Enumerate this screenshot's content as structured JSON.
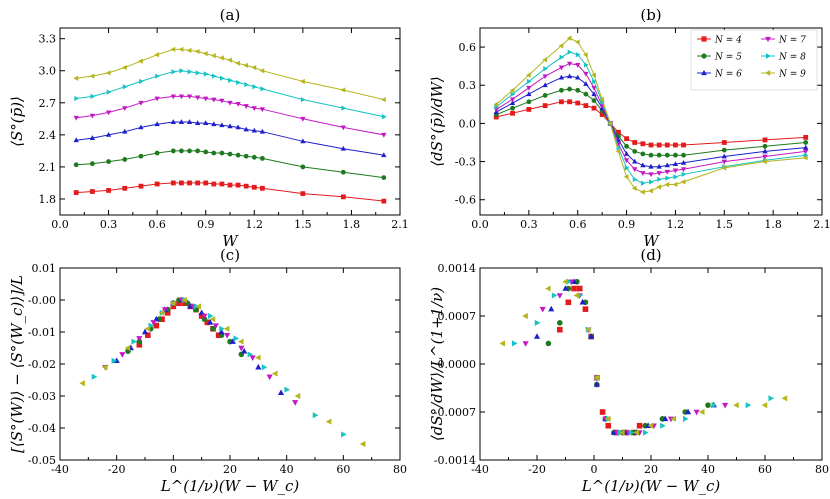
{
  "figure": {
    "description_panels": 4
  },
  "chart_data": [
    {
      "id": "a",
      "type": "line",
      "title": "(a)",
      "xlabel": "W",
      "ylabel": "⟨S°(p̄)⟩",
      "xlim": [
        0,
        2.1
      ],
      "ylim": [
        1.65,
        3.4
      ],
      "xticks": [
        "0.0",
        "0.3",
        "0.6",
        "0.9",
        "1.2",
        "1.5",
        "1.8",
        "2.1"
      ],
      "xtick_values": [
        0,
        0.3,
        0.6,
        0.9,
        1.2,
        1.5,
        1.8,
        2.1
      ],
      "yticks": [
        "1.8",
        "2.1",
        "2.4",
        "2.7",
        "3.0",
        "3.3"
      ],
      "ytick_values": [
        1.8,
        2.1,
        2.4,
        2.7,
        3.0,
        3.3
      ],
      "x": [
        0.1,
        0.2,
        0.3,
        0.4,
        0.5,
        0.6,
        0.7,
        0.75,
        0.8,
        0.85,
        0.9,
        0.95,
        1.0,
        1.05,
        1.1,
        1.15,
        1.2,
        1.25,
        1.5,
        1.75,
        2.0
      ],
      "series": [
        {
          "name": "N = 4",
          "color": "#e41a1c",
          "marker": "square",
          "values": [
            1.86,
            1.87,
            1.88,
            1.9,
            1.92,
            1.94,
            1.95,
            1.95,
            1.95,
            1.95,
            1.95,
            1.94,
            1.94,
            1.93,
            1.93,
            1.92,
            1.91,
            1.9,
            1.85,
            1.82,
            1.78
          ]
        },
        {
          "name": "N = 5",
          "color": "#1f7a1f",
          "marker": "circle",
          "values": [
            2.12,
            2.13,
            2.15,
            2.17,
            2.2,
            2.23,
            2.25,
            2.25,
            2.25,
            2.25,
            2.24,
            2.23,
            2.23,
            2.22,
            2.21,
            2.2,
            2.19,
            2.18,
            2.1,
            2.05,
            2.0
          ]
        },
        {
          "name": "N = 6",
          "color": "#1f1fcc",
          "marker": "triangle-up",
          "values": [
            2.35,
            2.37,
            2.4,
            2.43,
            2.47,
            2.5,
            2.52,
            2.52,
            2.52,
            2.51,
            2.51,
            2.5,
            2.49,
            2.48,
            2.47,
            2.45,
            2.44,
            2.43,
            2.34,
            2.27,
            2.21
          ]
        },
        {
          "name": "N = 7",
          "color": "#c418c4",
          "marker": "triangle-down",
          "values": [
            2.56,
            2.58,
            2.61,
            2.65,
            2.7,
            2.74,
            2.76,
            2.76,
            2.76,
            2.75,
            2.74,
            2.73,
            2.72,
            2.7,
            2.69,
            2.67,
            2.65,
            2.64,
            2.55,
            2.47,
            2.4
          ]
        },
        {
          "name": "N = 8",
          "color": "#17c3c3",
          "marker": "triangle-right",
          "values": [
            2.74,
            2.76,
            2.8,
            2.85,
            2.9,
            2.95,
            2.99,
            3.0,
            2.99,
            2.98,
            2.97,
            2.95,
            2.93,
            2.91,
            2.89,
            2.87,
            2.85,
            2.83,
            2.73,
            2.65,
            2.57
          ]
        },
        {
          "name": "N = 9",
          "color": "#b5b51d",
          "marker": "triangle-left",
          "values": [
            2.93,
            2.95,
            2.98,
            3.03,
            3.09,
            3.15,
            3.2,
            3.2,
            3.19,
            3.18,
            3.16,
            3.14,
            3.12,
            3.1,
            3.07,
            3.05,
            3.03,
            3.0,
            2.9,
            2.82,
            2.73
          ]
        }
      ]
    },
    {
      "id": "b",
      "type": "line",
      "title": "(b)",
      "xlabel": "W",
      "ylabel": "⟨dS°(p̄)/dW⟩",
      "xlim": [
        0,
        2.1
      ],
      "ylim": [
        -0.72,
        0.75
      ],
      "xticks": [
        "0.0",
        "0.3",
        "0.6",
        "0.9",
        "1.2",
        "1.5",
        "1.8",
        "2.1"
      ],
      "xtick_values": [
        0,
        0.3,
        0.6,
        0.9,
        1.2,
        1.5,
        1.8,
        2.1
      ],
      "yticks": [
        "-0.6",
        "-0.3",
        "0.0",
        "0.3",
        "0.6"
      ],
      "ytick_values": [
        -0.6,
        -0.3,
        0.0,
        0.3,
        0.6
      ],
      "legend": "top-right",
      "x": [
        0.1,
        0.2,
        0.3,
        0.4,
        0.5,
        0.55,
        0.6,
        0.65,
        0.7,
        0.75,
        0.8,
        0.85,
        0.9,
        0.95,
        1.0,
        1.05,
        1.1,
        1.15,
        1.2,
        1.25,
        1.5,
        1.75,
        2.0
      ],
      "series": [
        {
          "name": "N = 4",
          "color": "#e41a1c",
          "marker": "square",
          "values": [
            0.05,
            0.08,
            0.11,
            0.14,
            0.17,
            0.17,
            0.16,
            0.14,
            0.12,
            0.07,
            0.0,
            -0.07,
            -0.12,
            -0.15,
            -0.16,
            -0.17,
            -0.17,
            -0.17,
            -0.17,
            -0.17,
            -0.15,
            -0.13,
            -0.11
          ]
        },
        {
          "name": "N = 5",
          "color": "#1f7a1f",
          "marker": "circle",
          "values": [
            0.07,
            0.12,
            0.17,
            0.22,
            0.26,
            0.27,
            0.26,
            0.23,
            0.18,
            0.1,
            0.0,
            -0.1,
            -0.18,
            -0.22,
            -0.24,
            -0.25,
            -0.25,
            -0.25,
            -0.25,
            -0.25,
            -0.21,
            -0.18,
            -0.15
          ]
        },
        {
          "name": "N = 6",
          "color": "#1f1fcc",
          "marker": "triangle-up",
          "values": [
            0.09,
            0.16,
            0.23,
            0.3,
            0.36,
            0.37,
            0.36,
            0.31,
            0.23,
            0.12,
            0.0,
            -0.13,
            -0.24,
            -0.3,
            -0.33,
            -0.34,
            -0.34,
            -0.33,
            -0.32,
            -0.31,
            -0.26,
            -0.22,
            -0.19
          ]
        },
        {
          "name": "N = 7",
          "color": "#c418c4",
          "marker": "triangle-down",
          "values": [
            0.11,
            0.19,
            0.28,
            0.37,
            0.44,
            0.47,
            0.46,
            0.39,
            0.28,
            0.14,
            0.0,
            -0.16,
            -0.29,
            -0.36,
            -0.39,
            -0.4,
            -0.39,
            -0.38,
            -0.37,
            -0.36,
            -0.3,
            -0.26,
            -0.22
          ]
        },
        {
          "name": "N = 8",
          "color": "#17c3c3",
          "marker": "triangle-right",
          "values": [
            0.13,
            0.23,
            0.33,
            0.43,
            0.52,
            0.56,
            0.54,
            0.46,
            0.33,
            0.17,
            0.0,
            -0.19,
            -0.35,
            -0.44,
            -0.47,
            -0.46,
            -0.44,
            -0.43,
            -0.42,
            -0.4,
            -0.34,
            -0.29,
            -0.25
          ]
        },
        {
          "name": "N = 9",
          "color": "#b5b51d",
          "marker": "triangle-left",
          "values": [
            0.15,
            0.26,
            0.38,
            0.5,
            0.61,
            0.67,
            0.64,
            0.54,
            0.38,
            0.19,
            0.0,
            -0.22,
            -0.42,
            -0.51,
            -0.54,
            -0.53,
            -0.5,
            -0.48,
            -0.48,
            -0.46,
            -0.35,
            -0.3,
            -0.27
          ]
        }
      ]
    },
    {
      "id": "c",
      "type": "scatter",
      "title": "(c)",
      "xlabel": "L^(1/ν)(W − W_c)",
      "ylabel": "[⟨S°(W)⟩ − ⟨S°(W_c)⟩]/L",
      "xlim": [
        -40,
        80
      ],
      "ylim": [
        -0.05,
        0.01
      ],
      "xticks": [
        "-40",
        "-20",
        "0",
        "20",
        "40",
        "60",
        "80"
      ],
      "xtick_values": [
        -40,
        -20,
        0,
        20,
        40,
        60,
        80
      ],
      "yticks": [
        "-0.05",
        "-0.04",
        "-0.03",
        "-0.02",
        "-0.01",
        "-0.00",
        "0.01"
      ],
      "ytick_values": [
        -0.05,
        -0.04,
        -0.03,
        -0.02,
        -0.01,
        0.0,
        0.01
      ],
      "series": [
        {
          "name": "N = 4",
          "color": "#e41a1c",
          "marker": "square",
          "x": [
            -12,
            -9,
            -6,
            -4,
            -2,
            0,
            2,
            4,
            6,
            8,
            10,
            12,
            14,
            16
          ],
          "y": [
            -0.014,
            -0.011,
            -0.008,
            -0.006,
            -0.004,
            -0.002,
            -0.001,
            -0.001,
            -0.002,
            -0.003,
            -0.005,
            -0.007,
            -0.009,
            -0.011
          ]
        },
        {
          "name": "N = 5",
          "color": "#1f7a1f",
          "marker": "circle",
          "x": [
            -16,
            -12,
            -8,
            -5,
            -2,
            0,
            2,
            5,
            8,
            11,
            14,
            17,
            20,
            24
          ],
          "y": [
            -0.016,
            -0.013,
            -0.009,
            -0.006,
            -0.003,
            -0.001,
            0.0,
            -0.001,
            -0.003,
            -0.006,
            -0.009,
            -0.011,
            -0.013,
            -0.017
          ]
        },
        {
          "name": "N = 6",
          "color": "#1f1fcc",
          "marker": "triangle-up",
          "x": [
            -20,
            -15,
            -10,
            -6,
            -3,
            0,
            3,
            6,
            10,
            13,
            17,
            21,
            25,
            30,
            38
          ],
          "y": [
            -0.019,
            -0.015,
            -0.01,
            -0.006,
            -0.003,
            -0.001,
            0.0,
            -0.002,
            -0.004,
            -0.007,
            -0.01,
            -0.013,
            -0.016,
            -0.021,
            -0.029
          ]
        },
        {
          "name": "N = 7",
          "color": "#c418c4",
          "marker": "triangle-down",
          "x": [
            -24,
            -18,
            -12,
            -7,
            -3,
            0,
            3,
            7,
            11,
            15,
            19,
            24,
            28,
            34,
            43
          ],
          "y": [
            -0.021,
            -0.017,
            -0.012,
            -0.007,
            -0.003,
            -0.001,
            0.0,
            -0.002,
            -0.005,
            -0.008,
            -0.011,
            -0.015,
            -0.018,
            -0.024,
            -0.032
          ]
        },
        {
          "name": "N = 8",
          "color": "#17c3c3",
          "marker": "triangle-right",
          "x": [
            -28,
            -21,
            -14,
            -8,
            -4,
            0,
            4,
            8,
            13,
            17,
            22,
            27,
            32,
            40,
            50,
            60
          ],
          "y": [
            -0.024,
            -0.019,
            -0.013,
            -0.008,
            -0.004,
            -0.001,
            0.0,
            -0.002,
            -0.005,
            -0.009,
            -0.012,
            -0.017,
            -0.021,
            -0.028,
            -0.036,
            -0.042
          ]
        },
        {
          "name": "N = 9",
          "color": "#b5b51d",
          "marker": "triangle-left",
          "x": [
            -32,
            -24,
            -16,
            -9,
            -4,
            0,
            4,
            9,
            14,
            19,
            24,
            30,
            36,
            44,
            55,
            67
          ],
          "y": [
            -0.026,
            -0.021,
            -0.015,
            -0.009,
            -0.004,
            -0.001,
            0.0,
            -0.002,
            -0.006,
            -0.009,
            -0.013,
            -0.018,
            -0.023,
            -0.03,
            -0.038,
            -0.045
          ]
        }
      ]
    },
    {
      "id": "d",
      "type": "scatter",
      "title": "(d)",
      "xlabel": "L^(1/ν)(W − W_c)",
      "ylabel": "⟨dS°/dW⟩/L^(1+1/ν)",
      "xlim": [
        -40,
        80
      ],
      "ylim": [
        -0.0014,
        0.0014
      ],
      "xticks": [
        "-40",
        "-20",
        "0",
        "20",
        "40",
        "60",
        "80"
      ],
      "xtick_values": [
        -40,
        -20,
        0,
        20,
        40,
        60,
        80
      ],
      "yticks": [
        "-0.0014",
        "-0.0007",
        "0.0000",
        "0.0007",
        "0.0014"
      ],
      "ytick_values": [
        -0.0014,
        -0.0007,
        0.0,
        0.0007,
        0.0014
      ],
      "series": [
        {
          "name": "N = 4",
          "color": "#e41a1c",
          "marker": "square",
          "x": [
            -12,
            -9,
            -7,
            -5,
            -3,
            -1,
            1,
            3,
            5,
            8,
            11,
            14,
            16
          ],
          "y": [
            0.0005,
            0.0009,
            0.0011,
            0.0011,
            0.0008,
            0.0004,
            -0.0002,
            -0.0007,
            -0.0009,
            -0.001,
            -0.001,
            -0.001,
            -0.0009
          ]
        },
        {
          "name": "N = 5",
          "color": "#1f7a1f",
          "marker": "circle",
          "x": [
            -16,
            -12,
            -9,
            -6,
            -3,
            -1,
            1,
            4,
            7,
            10,
            14,
            18,
            24,
            32,
            40
          ],
          "y": [
            0.0003,
            0.0006,
            0.0011,
            0.0012,
            0.0009,
            0.0004,
            -0.0003,
            -0.0008,
            -0.001,
            -0.001,
            -0.001,
            -0.0009,
            -0.0008,
            -0.0007,
            -0.0006
          ]
        },
        {
          "name": "N = 6",
          "color": "#1f1fcc",
          "marker": "triangle-up",
          "x": [
            -20,
            -15,
            -10,
            -7,
            -4,
            -1,
            1,
            4,
            7,
            11,
            15,
            19,
            25,
            33,
            42
          ],
          "y": [
            0.0004,
            0.0008,
            0.0011,
            0.0012,
            0.0009,
            0.0004,
            -0.0003,
            -0.0008,
            -0.001,
            -0.001,
            -0.001,
            -0.0009,
            -0.0008,
            -0.0007,
            -0.0006
          ]
        },
        {
          "name": "N = 7",
          "color": "#c418c4",
          "marker": "triangle-down",
          "x": [
            -24,
            -18,
            -12,
            -8,
            -5,
            -2,
            1,
            4,
            8,
            12,
            16,
            21,
            27,
            36,
            46
          ],
          "y": [
            0.0003,
            0.0008,
            0.001,
            0.0012,
            0.001,
            0.0005,
            -0.0002,
            -0.0008,
            -0.001,
            -0.001,
            -0.001,
            -0.0009,
            -0.0008,
            -0.0007,
            -0.0006
          ]
        },
        {
          "name": "N = 8",
          "color": "#17c3c3",
          "marker": "triangle-right",
          "x": [
            -28,
            -20,
            -14,
            -9,
            -5,
            -2,
            1,
            5,
            9,
            13,
            18,
            24,
            32,
            42,
            54,
            62
          ],
          "y": [
            0.0003,
            0.0006,
            0.001,
            0.0012,
            0.001,
            0.0005,
            -0.0002,
            -0.0008,
            -0.001,
            -0.001,
            -0.001,
            -0.0009,
            -0.0008,
            -0.0006,
            -0.0006,
            -0.0005
          ]
        },
        {
          "name": "N = 9",
          "color": "#b5b51d",
          "marker": "triangle-left",
          "x": [
            -32,
            -24,
            -16,
            -10,
            -6,
            -2,
            1,
            5,
            10,
            15,
            20,
            28,
            38,
            50,
            60,
            67
          ],
          "y": [
            0.0003,
            0.0007,
            0.0011,
            0.0012,
            0.001,
            0.0005,
            -0.0002,
            -0.0008,
            -0.001,
            -0.001,
            -0.0009,
            -0.0008,
            -0.0007,
            -0.0006,
            -0.0006,
            -0.0005
          ]
        }
      ]
    }
  ]
}
